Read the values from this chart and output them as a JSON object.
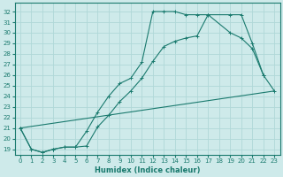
{
  "xlabel": "Humidex (Indice chaleur)",
  "bg_color": "#ceeaea",
  "grid_color": "#b0d8d8",
  "line_color": "#1a7a6e",
  "xlim": [
    -0.5,
    23.5
  ],
  "ylim": [
    18.5,
    32.8
  ],
  "xticks": [
    0,
    1,
    2,
    3,
    4,
    5,
    6,
    7,
    8,
    9,
    10,
    11,
    12,
    13,
    14,
    15,
    16,
    17,
    18,
    19,
    20,
    21,
    22,
    23
  ],
  "yticks": [
    19,
    20,
    21,
    22,
    23,
    24,
    25,
    26,
    27,
    28,
    29,
    30,
    31,
    32
  ],
  "series1_x": [
    0,
    1,
    2,
    3,
    4,
    5,
    6,
    7,
    8,
    9,
    10,
    11,
    12,
    13,
    14,
    15,
    16,
    17,
    19,
    20,
    21,
    22
  ],
  "series1_y": [
    21,
    19,
    18.7,
    19,
    19.2,
    19.2,
    19.3,
    21.1,
    22.2,
    23.5,
    24.5,
    25.7,
    27.3,
    28.7,
    29.2,
    29.5,
    29.7,
    31.7,
    31.7,
    31.7,
    29.0,
    26.0
  ],
  "series2_x": [
    0,
    1,
    2,
    3,
    4,
    5,
    6,
    7,
    8,
    9,
    10,
    11,
    12,
    13,
    14,
    15,
    16,
    17,
    19,
    20,
    21,
    22,
    23
  ],
  "series2_y": [
    21,
    19,
    18.7,
    19,
    19.2,
    19.2,
    20.7,
    22.5,
    24.0,
    25.2,
    25.7,
    27.2,
    32.0,
    32.0,
    32.0,
    31.7,
    31.7,
    31.7,
    30.0,
    29.5,
    28.5,
    26.0,
    24.5
  ],
  "series3_x": [
    0,
    23
  ],
  "series3_y": [
    21,
    24.5
  ]
}
